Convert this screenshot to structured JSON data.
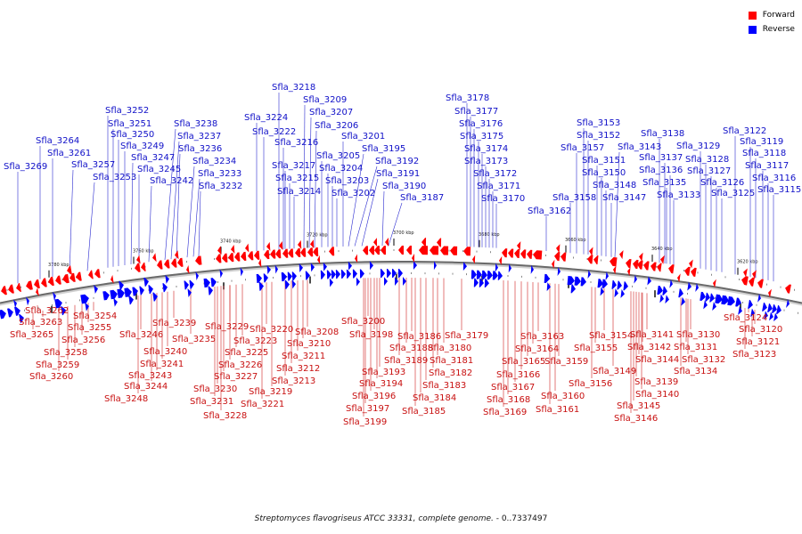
{
  "legend": {
    "forward": {
      "label": "Forward",
      "color": "#ff0000"
    },
    "reverse": {
      "label": "Reverse",
      "color": "#0000ff"
    }
  },
  "caption": {
    "organism": "Streptomyces flavogriseus ATCC 33331, complete genome.",
    "range": " - 0..7337497"
  },
  "ticks": [
    "3780 kbp",
    "3760 kbp",
    "3740 kbp",
    "3720 kbp",
    "3700 kbp",
    "3680 kbp",
    "3660 kbp",
    "3640 kbp",
    "3620 kbp"
  ],
  "reverse_labels": [
    "Sfla_3269",
    "Sfla_3264",
    "Sfla_3261",
    "Sfla_3257",
    "Sfla_3253",
    "Sfla_3252",
    "Sfla_3251",
    "Sfla_3250",
    "Sfla_3249",
    "Sfla_3247",
    "Sfla_3245",
    "Sfla_3242",
    "Sfla_3238",
    "Sfla_3237",
    "Sfla_3236",
    "Sfla_3234",
    "Sfla_3233",
    "Sfla_3232",
    "Sfla_3224",
    "Sfla_3222",
    "Sfla_3218",
    "Sfla_3216",
    "Sfla_3217",
    "Sfla_3215",
    "Sfla_3214",
    "Sfla_3209",
    "Sfla_3207",
    "Sfla_3206",
    "Sfla_3205",
    "Sfla_3204",
    "Sfla_3203",
    "Sfla_3202",
    "Sfla_3201",
    "Sfla_3195",
    "Sfla_3192",
    "Sfla_3191",
    "Sfla_3190",
    "Sfla_3187",
    "Sfla_3178",
    "Sfla_3177",
    "Sfla_3176",
    "Sfla_3175",
    "Sfla_3174",
    "Sfla_3173",
    "Sfla_3172",
    "Sfla_3171",
    "Sfla_3170",
    "Sfla_3162",
    "Sfla_3158",
    "Sfla_3157",
    "Sfla_3153",
    "Sfla_3152",
    "Sfla_3151",
    "Sfla_3150",
    "Sfla_3148",
    "Sfla_3147",
    "Sfla_3143",
    "Sfla_3138",
    "Sfla_3137",
    "Sfla_3136",
    "Sfla_3135",
    "Sfla_3133",
    "Sfla_3129",
    "Sfla_3128",
    "Sfla_3127",
    "Sfla_3126",
    "Sfla_3125",
    "Sfla_3122",
    "Sfla_3119",
    "Sfla_3118",
    "Sfla_3117",
    "Sfla_3116",
    "Sfla_3115"
  ],
  "forward_labels": [
    "Sfla_3262",
    "Sfla_3263",
    "Sfla_3265",
    "Sfla_3254",
    "Sfla_3255",
    "Sfla_3256",
    "Sfla_3258",
    "Sfla_3259",
    "Sfla_3260",
    "Sfla_3246",
    "Sfla_3239",
    "Sfla_3240",
    "Sfla_3235",
    "Sfla_3241",
    "Sfla_3243",
    "Sfla_3244",
    "Sfla_3248",
    "Sfla_3229",
    "Sfla_3223",
    "Sfla_3225",
    "Sfla_3226",
    "Sfla_3227",
    "Sfla_3230",
    "Sfla_3231",
    "Sfla_3228",
    "Sfla_3220",
    "Sfla_3208",
    "Sfla_3210",
    "Sfla_3211",
    "Sfla_3212",
    "Sfla_3213",
    "Sfla_3219",
    "Sfla_3221",
    "Sfla_3200",
    "Sfla_3198",
    "Sfla_3193",
    "Sfla_3194",
    "Sfla_3196",
    "Sfla_3197",
    "Sfla_3199",
    "Sfla_3186",
    "Sfla_3188",
    "Sfla_3189",
    "Sfla_3180",
    "Sfla_3179",
    "Sfla_3181",
    "Sfla_3182",
    "Sfla_3183",
    "Sfla_3184",
    "Sfla_3185",
    "Sfla_3163",
    "Sfla_3164",
    "Sfla_3165",
    "Sfla_3166",
    "Sfla_3167",
    "Sfla_3168",
    "Sfla_3169",
    "Sfla_3159",
    "Sfla_3160",
    "Sfla_3161",
    "Sfla_3154",
    "Sfla_3155",
    "Sfla_3156",
    "Sfla_3149",
    "Sfla_3141",
    "Sfla_3142",
    "Sfla_3144",
    "Sfla_3139",
    "Sfla_3140",
    "Sfla_3145",
    "Sfla_3146",
    "Sfla_3130",
    "Sfla_3131",
    "Sfla_3132",
    "Sfla_3134",
    "Sfla_3124",
    "Sfla_3120",
    "Sfla_3121",
    "Sfla_3123"
  ]
}
